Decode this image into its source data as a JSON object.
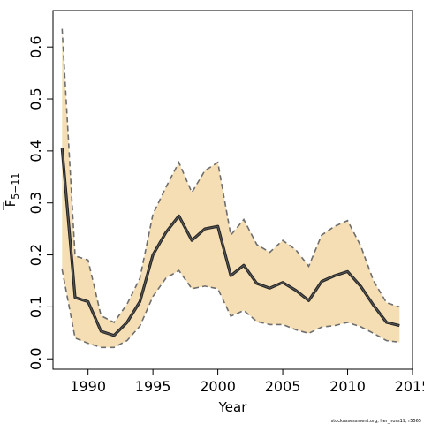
{
  "chart_data": {
    "type": "line",
    "xlabel": "Year",
    "ylabel": {
      "base": "F",
      "subscript": "5−11",
      "overbar": true
    },
    "xlim": [
      1987.3,
      2015
    ],
    "ylim": [
      -0.02,
      0.67
    ],
    "xticks": [
      1990,
      1995,
      2000,
      2005,
      2010,
      2015
    ],
    "yticks": [
      0.0,
      0.1,
      0.2,
      0.3,
      0.4,
      0.5,
      0.6
    ],
    "ytick_labels": [
      "0.0",
      "0.1",
      "0.2",
      "0.3",
      "0.4",
      "0.5",
      "0.6"
    ],
    "grid": false,
    "colors": {
      "band": "#f5deb3",
      "line": "#555555",
      "bound": "#6e6e6e"
    },
    "x": [
      1988,
      1989,
      1990,
      1991,
      1992,
      1993,
      1994,
      1995,
      1996,
      1997,
      1998,
      1999,
      2000,
      2001,
      2002,
      2003,
      2004,
      2005,
      2006,
      2007,
      2008,
      2009,
      2010,
      2011,
      2012,
      2013,
      2014
    ],
    "series": [
      {
        "role": "estimate",
        "values": [
          0.405,
          0.118,
          0.11,
          0.053,
          0.045,
          0.07,
          0.11,
          0.2,
          0.243,
          0.275,
          0.228,
          0.25,
          0.255,
          0.16,
          0.18,
          0.145,
          0.136,
          0.147,
          0.132,
          0.112,
          0.149,
          0.16,
          0.168,
          0.14,
          0.103,
          0.07,
          0.064
        ]
      },
      {
        "role": "upper",
        "values": [
          0.635,
          0.198,
          0.19,
          0.083,
          0.07,
          0.105,
          0.155,
          0.278,
          0.33,
          0.378,
          0.32,
          0.362,
          0.378,
          0.238,
          0.268,
          0.22,
          0.205,
          0.228,
          0.21,
          0.178,
          0.238,
          0.255,
          0.266,
          0.218,
          0.15,
          0.108,
          0.1
        ]
      },
      {
        "role": "lower",
        "values": [
          0.172,
          0.04,
          0.03,
          0.022,
          0.022,
          0.035,
          0.063,
          0.12,
          0.155,
          0.17,
          0.135,
          0.14,
          0.135,
          0.082,
          0.093,
          0.072,
          0.066,
          0.066,
          0.056,
          0.049,
          0.061,
          0.064,
          0.07,
          0.062,
          0.049,
          0.035,
          0.032
        ]
      }
    ]
  },
  "source_note": "stockassessment.org, her_noss19, r5565"
}
